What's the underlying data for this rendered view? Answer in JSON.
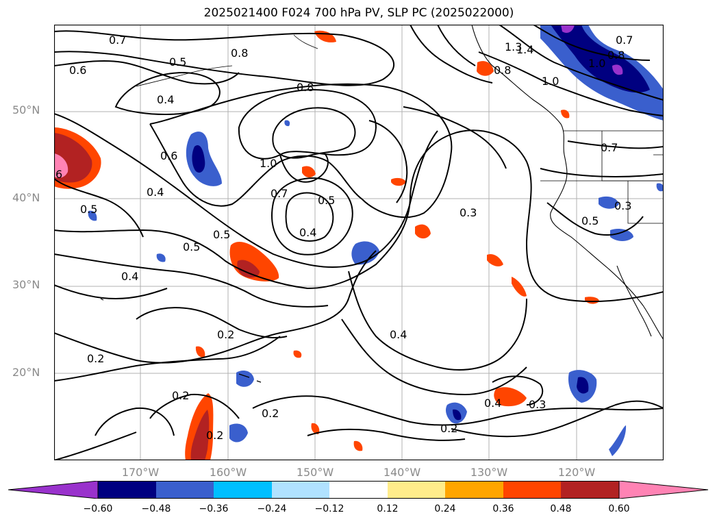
{
  "title": "2025021400 F024 700 hPa PV, SLP PC (2025022000)",
  "lat_labels": [
    "50°N",
    "40°N",
    "30°N",
    "20°N"
  ],
  "lon_labels": [
    "170°W",
    "160°W",
    "150°W",
    "140°W",
    "130°W",
    "120°W"
  ],
  "colorbar": {
    "ticks": [
      "−0.60",
      "−0.48",
      "−0.36",
      "−0.24",
      "−0.12",
      "0.12",
      "0.24",
      "0.36",
      "0.48",
      "0.60"
    ],
    "colors": [
      "#9932cc",
      "#000080",
      "#3a5fcd",
      "#00bfff",
      "#b0e2ff",
      "#ffffff",
      "#ffec8b",
      "#ffa500",
      "#ff4500",
      "#b22222",
      "#ff83b4"
    ]
  },
  "contour_labels": {
    "c07_top": "0.7",
    "c08_top": "0.8",
    "c05_top": "0.5",
    "c06_left": "0.6",
    "c04_tl": "0.4",
    "c08_mid": "0.8",
    "c10_mid": "1.0",
    "c06_mid": "0.6",
    "c04_left": "0.4",
    "c05_left": "0.5",
    "c05_mid": "0.5",
    "c07_mid": "0.7",
    "c05_low": "0.5",
    "c04_center": "0.4",
    "c05_c": "0.5",
    "c04_lower": "0.4",
    "c03_mid": "0.3",
    "c02_mid": "0.2",
    "c02_left": "0.2",
    "c04_right": "0.4",
    "c02_bot": "0.2",
    "c02_bot2": "0.2",
    "c02_bot3": "0.2",
    "c04_b": "0.4",
    "c03_b": "0.3",
    "c02_b": "0.2",
    "c14": "1.4",
    "c13": "1.3",
    "c08_ne": "0.8",
    "c10_ne": "1.0",
    "c07_ne": "0.7",
    "c08_ne2": "0.8",
    "c10_ne2": "1.0",
    "c07_east": "0.7",
    "c03_east": "0.3",
    "c05_east": "0.5",
    "c06_far": "6"
  }
}
